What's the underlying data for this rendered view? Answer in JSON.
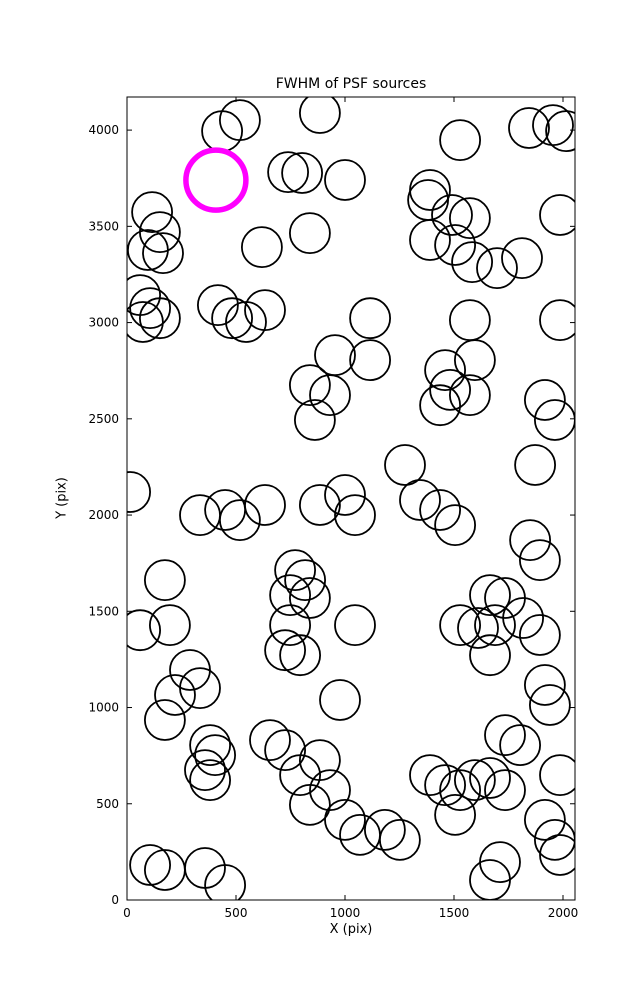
{
  "chart_data": {
    "type": "scatter",
    "title": "FWHM of PSF sources",
    "xlabel": "X (pix)",
    "ylabel": "Y (pix)",
    "xlim": [
      0,
      2055
    ],
    "ylim": [
      0,
      4172
    ],
    "xticks": [
      0,
      500,
      1000,
      1500,
      2000
    ],
    "yticks": [
      0,
      500,
      1000,
      1500,
      2000,
      2500,
      3000,
      3500,
      4000
    ],
    "grid": false,
    "legend": "none",
    "marker": {
      "shape": "circle",
      "radius_px": 20,
      "stroke": "#000000",
      "stroke_width": 1.8,
      "fill": "none"
    },
    "highlight_marker": {
      "shape": "circle",
      "radius_px": 30,
      "stroke": "#ff00ff",
      "stroke_width": 5.5,
      "fill": "none"
    },
    "highlight_point": [
      408,
      3740
    ],
    "points": [
      [
        436,
        3995
      ],
      [
        518,
        4052
      ],
      [
        885,
        4089
      ],
      [
        1528,
        3948
      ],
      [
        1844,
        4011
      ],
      [
        1954,
        4026
      ],
      [
        2014,
        3995
      ],
      [
        739,
        3782
      ],
      [
        803,
        3777
      ],
      [
        1000,
        3741
      ],
      [
        1390,
        3689
      ],
      [
        115,
        3574
      ],
      [
        151,
        3470
      ],
      [
        96,
        3377
      ],
      [
        165,
        3361
      ],
      [
        1381,
        3637
      ],
      [
        1491,
        3559
      ],
      [
        1573,
        3543
      ],
      [
        1390,
        3429
      ],
      [
        1505,
        3403
      ],
      [
        1986,
        3559
      ],
      [
        1583,
        3314
      ],
      [
        1697,
        3283
      ],
      [
        1812,
        3335
      ],
      [
        619,
        3392
      ],
      [
        839,
        3465
      ],
      [
        60,
        3143
      ],
      [
        106,
        3075
      ],
      [
        73,
        3003
      ],
      [
        151,
        3023
      ],
      [
        417,
        3091
      ],
      [
        482,
        3023
      ],
      [
        546,
        3003
      ],
      [
        633,
        3065
      ],
      [
        1115,
        3023
      ],
      [
        1573,
        3013
      ],
      [
        1986,
        3013
      ],
      [
        954,
        2831
      ],
      [
        1115,
        2805
      ],
      [
        839,
        2675
      ],
      [
        931,
        2623
      ],
      [
        862,
        2494
      ],
      [
        1459,
        2753
      ],
      [
        1596,
        2805
      ],
      [
        1482,
        2650
      ],
      [
        1573,
        2623
      ],
      [
        1436,
        2571
      ],
      [
        1917,
        2598
      ],
      [
        1963,
        2494
      ],
      [
        1275,
        2260
      ],
      [
        1872,
        2260
      ],
      [
        14,
        2120
      ],
      [
        335,
        2000
      ],
      [
        450,
        2026
      ],
      [
        518,
        1974
      ],
      [
        633,
        2052
      ],
      [
        885,
        2052
      ],
      [
        1000,
        2104
      ],
      [
        1046,
        2000
      ],
      [
        1344,
        2078
      ],
      [
        1436,
        2026
      ],
      [
        1505,
        1948
      ],
      [
        1849,
        1870
      ],
      [
        1894,
        1766
      ],
      [
        174,
        1662
      ],
      [
        771,
        1714
      ],
      [
        817,
        1662
      ],
      [
        748,
        1584
      ],
      [
        839,
        1569
      ],
      [
        1665,
        1584
      ],
      [
        1734,
        1569
      ],
      [
        60,
        1402
      ],
      [
        197,
        1428
      ],
      [
        748,
        1428
      ],
      [
        1046,
        1428
      ],
      [
        1528,
        1428
      ],
      [
        1610,
        1413
      ],
      [
        1688,
        1428
      ],
      [
        1817,
        1465
      ],
      [
        1894,
        1377
      ],
      [
        725,
        1298
      ],
      [
        794,
        1272
      ],
      [
        1665,
        1272
      ],
      [
        289,
        1195
      ],
      [
        335,
        1101
      ],
      [
        220,
        1065
      ],
      [
        977,
        1039
      ],
      [
        1917,
        1117
      ],
      [
        1940,
        1013
      ],
      [
        174,
        935
      ],
      [
        381,
        805
      ],
      [
        404,
        753
      ],
      [
        656,
        831
      ],
      [
        725,
        779
      ],
      [
        885,
        727
      ],
      [
        1734,
        857
      ],
      [
        1803,
        805
      ],
      [
        358,
        675
      ],
      [
        381,
        623
      ],
      [
        794,
        649
      ],
      [
        931,
        571
      ],
      [
        1390,
        649
      ],
      [
        1459,
        597
      ],
      [
        1528,
        571
      ],
      [
        1596,
        623
      ],
      [
        1665,
        634
      ],
      [
        1734,
        571
      ],
      [
        1986,
        649
      ],
      [
        839,
        494
      ],
      [
        1000,
        416
      ],
      [
        1069,
        338
      ],
      [
        1183,
        364
      ],
      [
        1252,
        312
      ],
      [
        1505,
        442
      ],
      [
        1917,
        416
      ],
      [
        1963,
        312
      ],
      [
        106,
        182
      ],
      [
        174,
        156
      ],
      [
        358,
        166
      ],
      [
        450,
        78
      ],
      [
        1665,
        104
      ],
      [
        1711,
        197
      ],
      [
        1986,
        234
      ]
    ]
  }
}
